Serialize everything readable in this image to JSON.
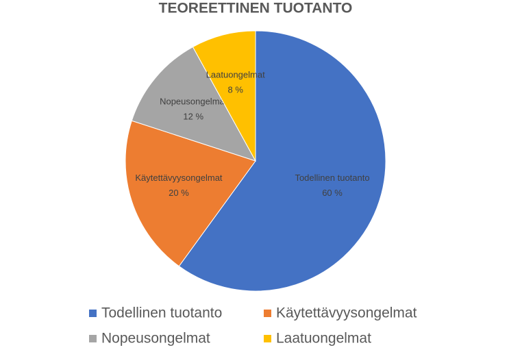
{
  "chart_data": {
    "type": "pie",
    "title": "TEOREETTINEN TUOTANTO",
    "categories": [
      "Todellinen tuotanto",
      "Käytettävyysongelmat",
      "Nopeusongelmat",
      "Laatuongelmat"
    ],
    "values": [
      60,
      20,
      12,
      8
    ],
    "value_labels": [
      "60 %",
      "20 %",
      "12 %",
      "8 %"
    ],
    "colors": [
      "#4472c4",
      "#ed7d31",
      "#a5a5a5",
      "#ffc000"
    ],
    "legend": "bottom"
  }
}
